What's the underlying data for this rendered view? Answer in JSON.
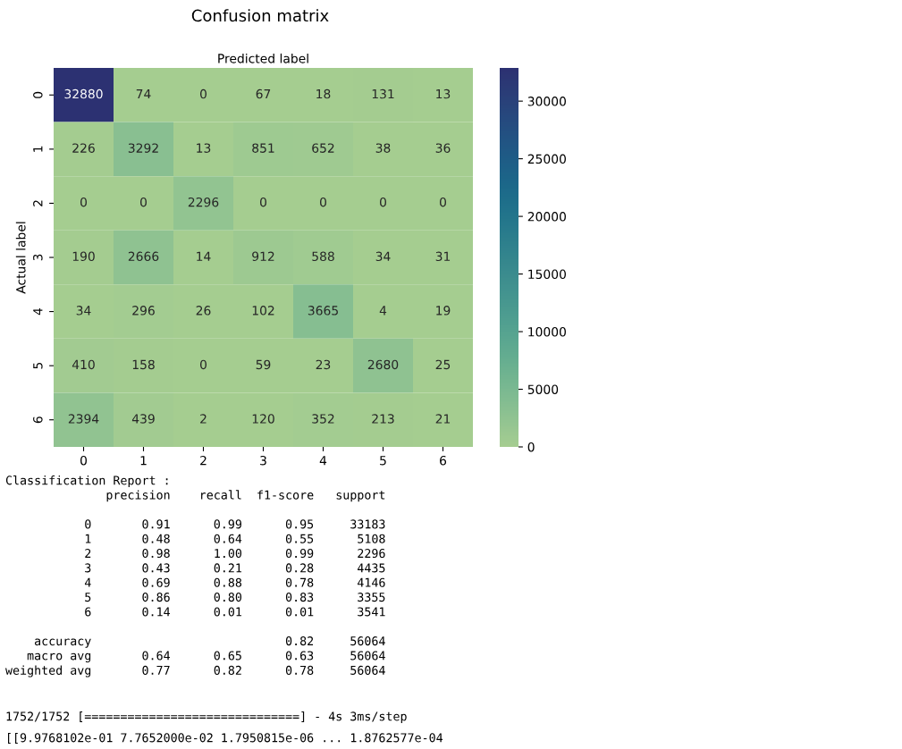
{
  "chart_data": {
    "type": "heatmap",
    "title": "Confusion matrix",
    "xlabel": "Predicted label",
    "ylabel": "Actual label",
    "categories": [
      "0",
      "1",
      "2",
      "3",
      "4",
      "5",
      "6"
    ],
    "y_categories": [
      "0",
      "1",
      "2",
      "3",
      "4",
      "5",
      "6"
    ],
    "cells": [
      [
        32880,
        74,
        0,
        67,
        18,
        131,
        13
      ],
      [
        226,
        3292,
        13,
        851,
        652,
        38,
        36
      ],
      [
        0,
        0,
        2296,
        0,
        0,
        0,
        0
      ],
      [
        190,
        2666,
        14,
        912,
        588,
        34,
        31
      ],
      [
        34,
        296,
        26,
        102,
        3665,
        4,
        19
      ],
      [
        410,
        158,
        0,
        59,
        23,
        2680,
        25
      ],
      [
        2394,
        439,
        2,
        120,
        352,
        213,
        21
      ]
    ],
    "clim": [
      0,
      32880
    ],
    "cticks": [
      0,
      5000,
      10000,
      15000,
      20000,
      25000,
      30000
    ],
    "data_labels": true,
    "grid": false,
    "annotations": [
      "Classification Report :\n              precision    recall  f1-score   support\n\n           0       0.91      0.99      0.95     33183\n           1       0.48      0.64      0.55      5108\n           2       0.98      1.00      0.99      2296\n           3       0.43      0.21      0.28      4435\n           4       0.69      0.88      0.78      4146\n           5       0.86      0.80      0.83      3355\n           6       0.14      0.01      0.01      3541\n\n    accuracy                           0.82     56064\n   macro avg       0.64      0.65      0.63     56064\nweighted avg       0.77      0.82      0.78     56064",
      "1752/1752 [==============================] - 4s 3ms/step",
      "[[9.9768102e-01 7.7652000e-02 1.7950815e-06 ... 1.8762577e-04"
    ]
  }
}
